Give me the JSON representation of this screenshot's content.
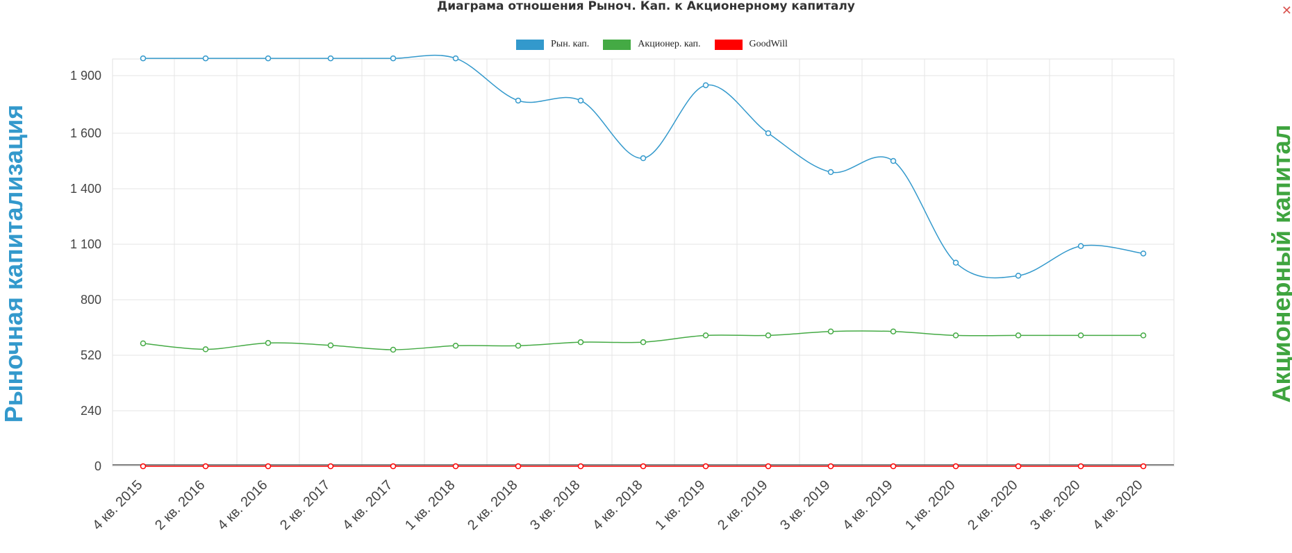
{
  "chart_data": {
    "type": "line",
    "title": "Диаграма отношения Рыноч. Кап. к Акционерному капиталу",
    "ylabel_left": "Рыночная капитализация",
    "ylabel_right": "Акционерный капитал",
    "categories": [
      "4 кв. 2015",
      "2 кв. 2016",
      "4 кв. 2016",
      "2 кв. 2017",
      "4 кв. 2017",
      "1 кв. 2018",
      "2 кв. 2018",
      "3 кв. 2018",
      "4 кв. 2018",
      "1 кв. 2019",
      "2 кв. 2019",
      "3 кв. 2019",
      "4 кв. 2019",
      "1 кв. 2020",
      "2 кв. 2020",
      "3 кв. 2020",
      "4 кв. 2020"
    ],
    "y_ticks": [
      0,
      240,
      520,
      800,
      1100,
      1400,
      1600,
      1900
    ],
    "y_tick_labels": [
      "0",
      "240",
      "520",
      "800",
      "1 100",
      "1 400",
      "1 600",
      "1 900"
    ],
    "grid": true,
    "legend_position": "top-center",
    "series": [
      {
        "name": "Рын. кап.",
        "color": "#3399cc",
        "values": [
          1990,
          1990,
          1990,
          1990,
          1990,
          1990,
          1770,
          1770,
          1510,
          1850,
          1600,
          1460,
          1500,
          1000,
          930,
          1090,
          1050
        ]
      },
      {
        "name": "Акционер. кап.",
        "color": "#44aa44",
        "values": [
          580,
          550,
          582,
          570,
          548,
          568,
          568,
          586,
          586,
          620,
          620,
          640,
          640,
          620,
          620,
          620,
          620
        ]
      },
      {
        "name": "GoodWill",
        "color": "#ff0000",
        "values": [
          0,
          0,
          0,
          0,
          0,
          0,
          0,
          0,
          0,
          0,
          0,
          0,
          0,
          0,
          0,
          0,
          0
        ]
      }
    ]
  },
  "close_icon": "close-icon"
}
